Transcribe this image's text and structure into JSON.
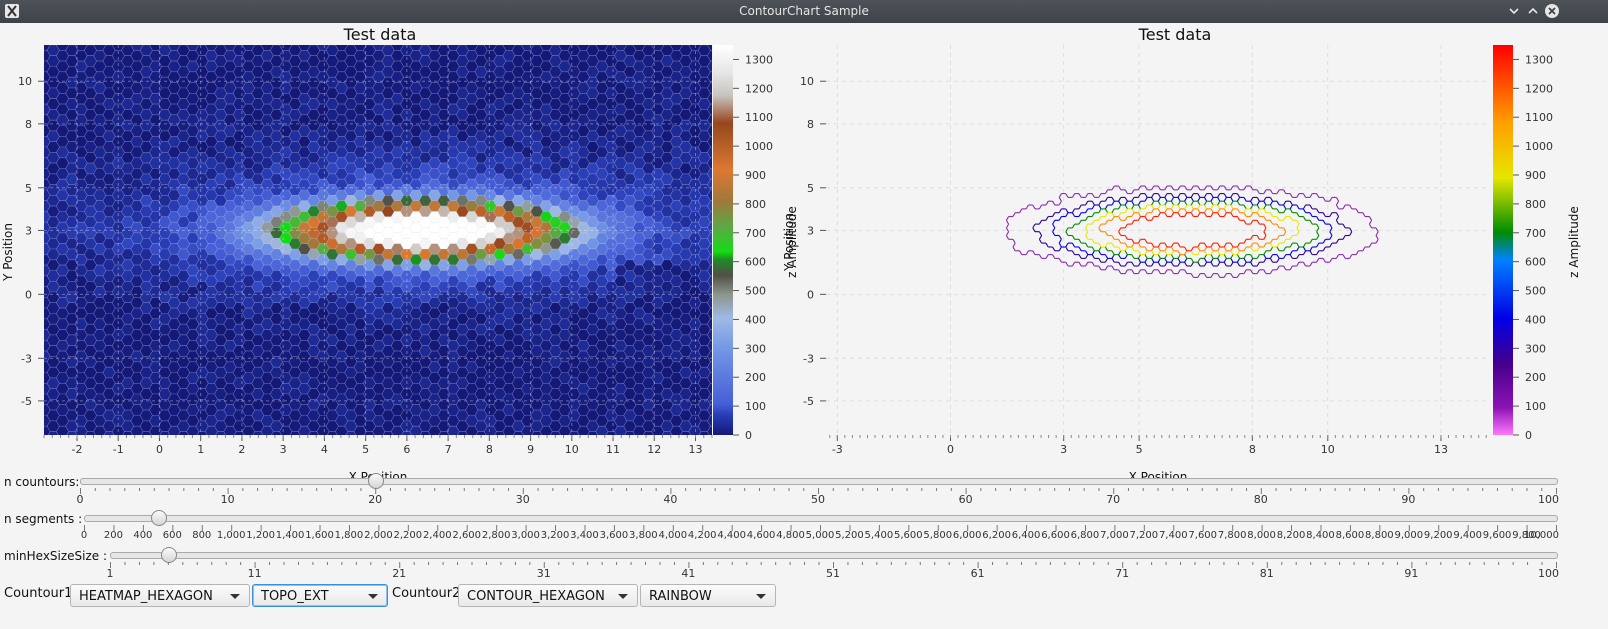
{
  "window": {
    "title": "ContourChart Sample"
  },
  "chart_data": [
    {
      "type": "heatmap",
      "title": "Test data",
      "xlabel": "X Position",
      "ylabel": "Y Position",
      "zlabel": "z Amplitude",
      "xlim": [
        -2.8,
        13.4
      ],
      "ylim": [
        -6.6,
        11.7
      ],
      "zlim": [
        0,
        1350
      ],
      "x_ticks": [
        -2,
        -1,
        0,
        1,
        2,
        3,
        4,
        5,
        6,
        7,
        8,
        9,
        10,
        11,
        12,
        13
      ],
      "y_ticks": [
        10,
        8,
        5,
        3,
        0,
        -3,
        -5
      ],
      "z_ticks": [
        0,
        100,
        200,
        300,
        400,
        500,
        600,
        700,
        800,
        900,
        1000,
        1100,
        1200,
        1300
      ],
      "colormap": "TOPO_EXT",
      "renderer": "HEATMAP_HEXAGON",
      "peak": {
        "x": 6.3,
        "y": 3.0,
        "z": 1300
      }
    },
    {
      "type": "contour",
      "title": "Test data",
      "xlabel": "X Position",
      "ylabel": "Y Position",
      "zlabel": "z Amplitude",
      "xlim": [
        -3.3,
        14.3
      ],
      "ylim": [
        -6.6,
        11.7
      ],
      "zlim": [
        0,
        1350
      ],
      "x_ticks": [
        -3,
        0,
        3,
        5,
        8,
        10,
        13
      ],
      "y_ticks": [
        10,
        8,
        5,
        3,
        0,
        -3,
        -5
      ],
      "z_ticks": [
        0,
        100,
        200,
        300,
        400,
        500,
        600,
        700,
        800,
        900,
        1000,
        1100,
        1200,
        1300
      ],
      "colormap": "RAINBOW",
      "renderer": "CONTOUR_HEXAGON",
      "grid": true,
      "levels": [
        {
          "z": 150,
          "color": "#8a2ab0"
        },
        {
          "z": 350,
          "color": "#2a0090"
        },
        {
          "z": 500,
          "color": "#0000e0"
        },
        {
          "z": 700,
          "color": "#008a00"
        },
        {
          "z": 900,
          "color": "#e8e800"
        },
        {
          "z": 1100,
          "color": "#ff8a00"
        },
        {
          "z": 1250,
          "color": "#ff1a00"
        }
      ]
    }
  ],
  "controls": {
    "sliders": [
      {
        "label": "n countours:",
        "value": 20,
        "min": 0,
        "max": 100,
        "tick_labels": [
          "0",
          "10",
          "20",
          "30",
          "40",
          "50",
          "60",
          "70",
          "80",
          "90",
          "100"
        ]
      },
      {
        "label": "n segments :",
        "value": 500,
        "min": 0,
        "max": 10000,
        "tick_labels": [
          "0",
          "200",
          "400",
          "600",
          "800",
          "1,000",
          "1,200",
          "1,400",
          "1,600",
          "1,800",
          "2,000",
          "2,200",
          "2,400",
          "2,600",
          "2,800",
          "3,000",
          "3,200",
          "3,400",
          "3,600",
          "3,800",
          "4,000",
          "4,200",
          "4,400",
          "4,600",
          "4,800",
          "5,000",
          "5,200",
          "5,400",
          "5,600",
          "5,800",
          "6,000",
          "6,200",
          "6,400",
          "6,600",
          "6,800",
          "7,000",
          "7,200",
          "7,400",
          "7,600",
          "7,800",
          "8,000",
          "8,200",
          "8,400",
          "8,600",
          "8,800",
          "9,000",
          "9,200",
          "9,400",
          "9,600",
          "9,800",
          "10,000"
        ]
      },
      {
        "label": "minHexSizeSize :",
        "value": 5,
        "min": 1,
        "max": 100,
        "tick_labels": [
          "1",
          "11",
          "21",
          "31",
          "41",
          "51",
          "61",
          "71",
          "81",
          "91",
          "100"
        ]
      }
    ],
    "countour1_label": "Countour1:",
    "countour2_label": "Countour2:",
    "combo1": "HEATMAP_HEXAGON",
    "combo2": "TOPO_EXT",
    "combo3": "CONTOUR_HEXAGON",
    "combo4": "RAINBOW"
  }
}
